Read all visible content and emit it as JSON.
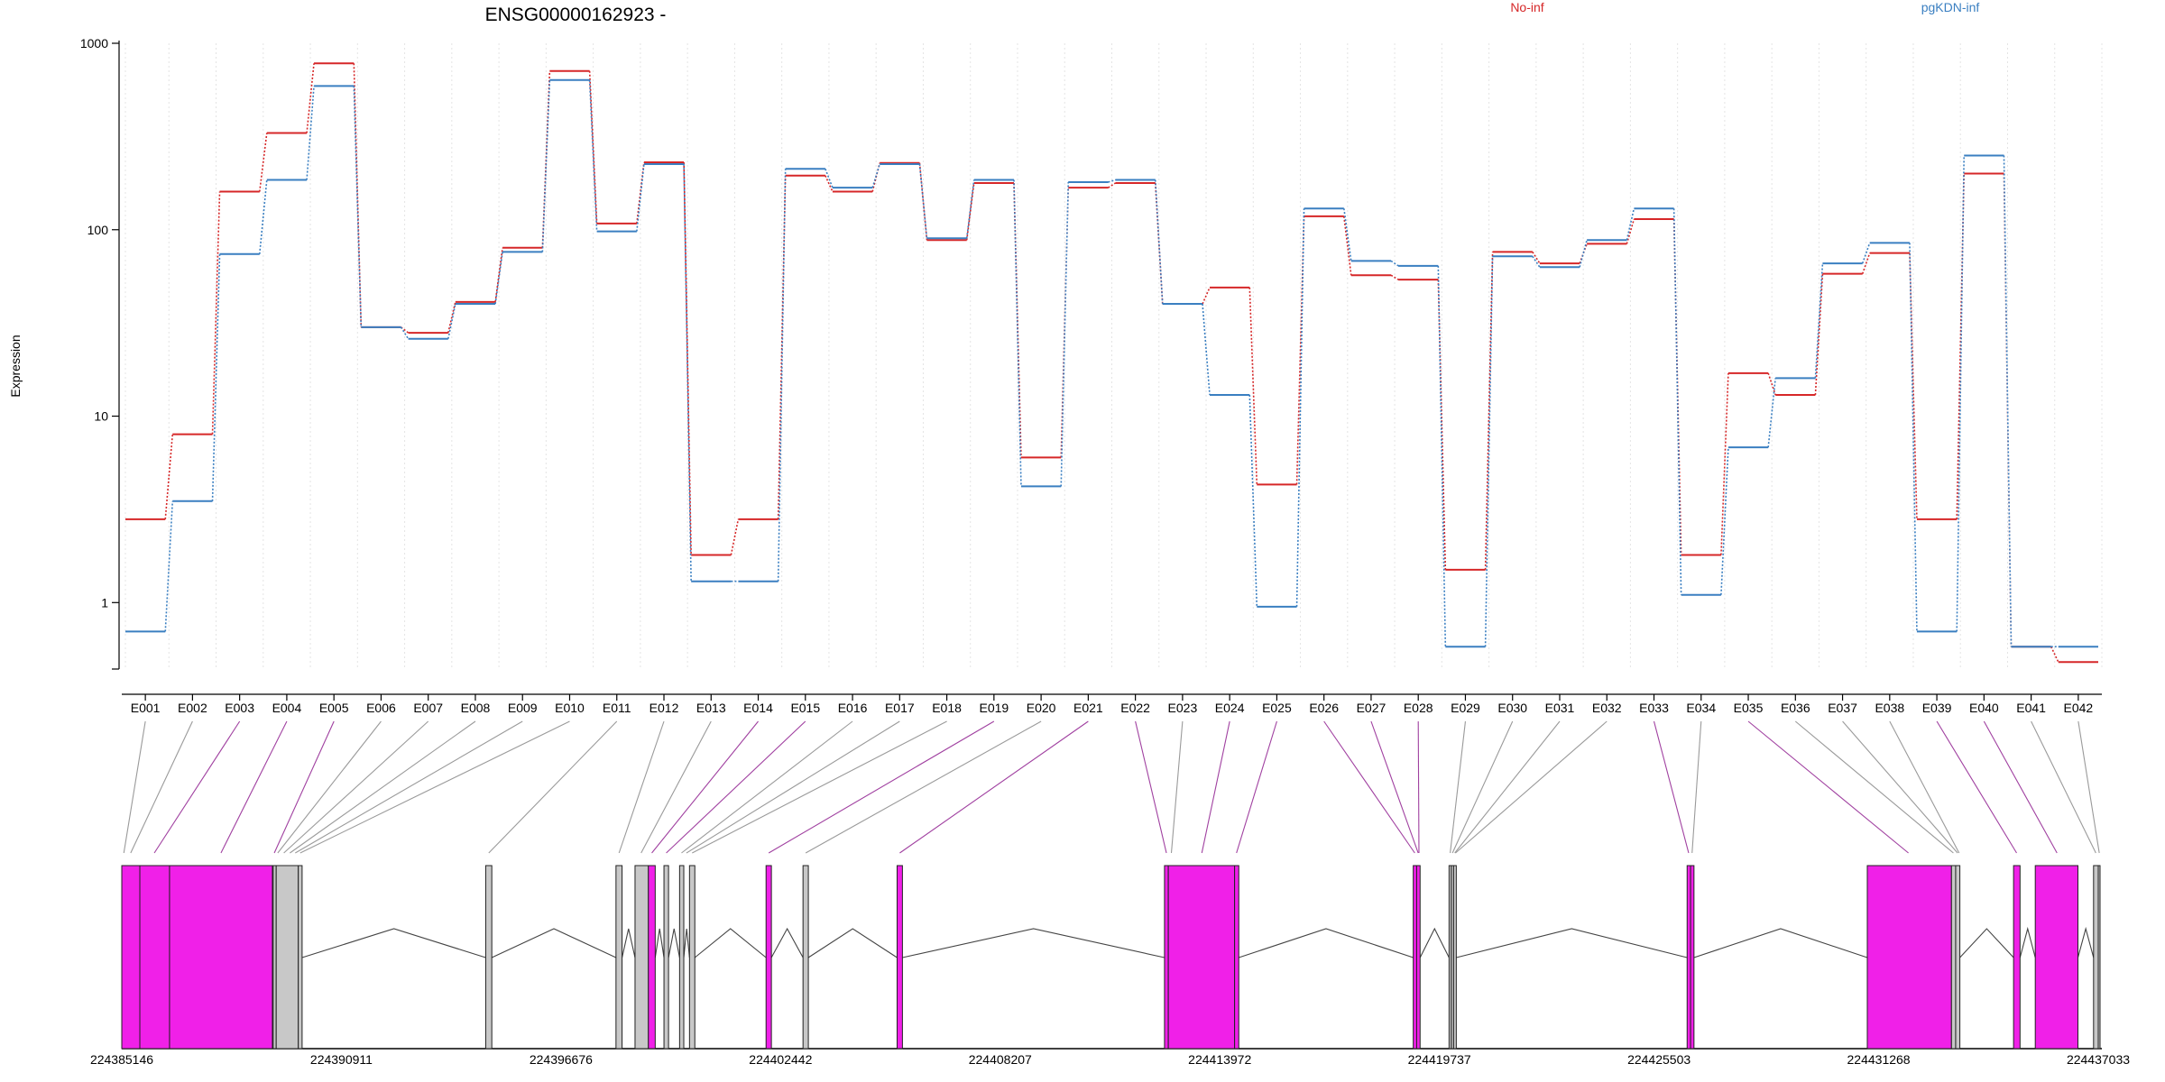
{
  "chart_data": {
    "type": "line",
    "title": "ENSG00000162923 -",
    "ylabel": "Expression",
    "yscale": "log",
    "ylim": [
      0.45,
      1000
    ],
    "yticks": [
      1,
      10,
      100,
      1000
    ],
    "ytick_labels": [
      "1",
      "10",
      "100",
      "1000"
    ],
    "categories": [
      "E001",
      "E002",
      "E003",
      "E004",
      "E005",
      "E006",
      "E007",
      "E008",
      "E009",
      "E010",
      "E011",
      "E012",
      "E013",
      "E014",
      "E015",
      "E016",
      "E017",
      "E018",
      "E019",
      "E020",
      "E021",
      "E022",
      "E023",
      "E024",
      "E025",
      "E026",
      "E027",
      "E028",
      "E029",
      "E030",
      "E031",
      "E032",
      "E033",
      "E034",
      "E035",
      "E036",
      "E037",
      "E038",
      "E039",
      "E040",
      "E041",
      "E042"
    ],
    "series": [
      {
        "name": "No-inf",
        "color": "#d62728",
        "values": [
          2.8,
          8.0,
          160,
          330,
          780,
          30,
          28,
          41,
          80,
          710,
          108,
          230,
          1.8,
          2.8,
          195,
          160,
          228,
          88,
          178,
          6.0,
          168,
          178,
          40,
          49,
          4.3,
          118,
          57,
          54,
          1.5,
          76,
          66,
          84,
          114,
          1.8,
          17,
          13,
          58,
          75,
          2.8,
          200,
          0.58,
          0.48
        ]
      },
      {
        "name": "pgKDN-inf",
        "color": "#3a7fc1",
        "values": [
          0.7,
          3.5,
          74,
          185,
          590,
          30,
          26,
          40,
          76,
          635,
          98,
          225,
          1.3,
          1.3,
          212,
          168,
          225,
          90,
          185,
          4.2,
          180,
          185,
          40,
          13,
          0.95,
          130,
          68,
          64,
          0.58,
          72,
          63,
          88,
          130,
          1.1,
          6.8,
          16,
          66,
          85,
          0.7,
          250,
          0.58,
          0.58
        ]
      }
    ],
    "gene_coords": {
      "start": 224385146,
      "end": 224437033,
      "tick_labels": [
        "224385146",
        "224390911",
        "224396676",
        "224402442",
        "224408207",
        "224413972",
        "224419737",
        "224425503",
        "224431268",
        "224437033"
      ]
    },
    "exons": [
      {
        "s": 224385146,
        "e": 224385620,
        "diff": true
      },
      {
        "s": 224385620,
        "e": 224386400,
        "diff": true
      },
      {
        "s": 224386400,
        "e": 224389100,
        "diff": true
      },
      {
        "s": 224389120,
        "e": 224389200,
        "diff": false
      },
      {
        "s": 224389200,
        "e": 224389780,
        "diff": false
      },
      {
        "s": 224389780,
        "e": 224389880,
        "diff": false
      },
      {
        "s": 224394700,
        "e": 224394860,
        "diff": false
      },
      {
        "s": 224398120,
        "e": 224398280,
        "diff": false
      },
      {
        "s": 224398620,
        "e": 224398970,
        "diff": false
      },
      {
        "s": 224398970,
        "e": 224399150,
        "diff": true
      },
      {
        "s": 224399380,
        "e": 224399500,
        "diff": false
      },
      {
        "s": 224399790,
        "e": 224399900,
        "diff": false
      },
      {
        "s": 224400050,
        "e": 224400190,
        "diff": false
      },
      {
        "s": 224402060,
        "e": 224402200,
        "diff": true
      },
      {
        "s": 224403030,
        "e": 224403170,
        "diff": false
      },
      {
        "s": 224405500,
        "e": 224405640,
        "diff": true
      },
      {
        "s": 224412520,
        "e": 224412620,
        "diff": true
      },
      {
        "s": 224412620,
        "e": 224414360,
        "diff": true
      },
      {
        "s": 224414360,
        "e": 224414470,
        "diff": true
      },
      {
        "s": 224419050,
        "e": 224419140,
        "diff": true
      },
      {
        "s": 224419140,
        "e": 224419230,
        "diff": true
      },
      {
        "s": 224419990,
        "e": 224420050,
        "diff": false
      },
      {
        "s": 224420050,
        "e": 224420110,
        "diff": false
      },
      {
        "s": 224420110,
        "e": 224420180,
        "diff": false
      },
      {
        "s": 224426240,
        "e": 224426330,
        "diff": true
      },
      {
        "s": 224426330,
        "e": 224426420,
        "diff": true
      },
      {
        "s": 224430970,
        "e": 224433180,
        "diff": true
      },
      {
        "s": 224433180,
        "e": 224433290,
        "diff": false
      },
      {
        "s": 224433290,
        "e": 224433400,
        "diff": false
      },
      {
        "s": 224434810,
        "e": 224434980,
        "diff": true
      },
      {
        "s": 224435380,
        "e": 224436500,
        "diff": true
      },
      {
        "s": 224436910,
        "e": 224437033,
        "diff": false
      },
      {
        "s": 224437033,
        "e": 224437080,
        "diff": false
      }
    ],
    "exon_map": [
      {
        "e": "E001",
        "c": 224385200,
        "diff": false
      },
      {
        "e": "E002",
        "c": 224385380,
        "diff": false
      },
      {
        "e": "E003",
        "c": 224386000,
        "diff": true
      },
      {
        "e": "E004",
        "c": 224387750,
        "diff": true
      },
      {
        "e": "E005",
        "c": 224389150,
        "diff": true
      },
      {
        "e": "E006",
        "c": 224389240,
        "diff": false
      },
      {
        "e": "E007",
        "c": 224389400,
        "diff": false
      },
      {
        "e": "E008",
        "c": 224389560,
        "diff": false
      },
      {
        "e": "E009",
        "c": 224389700,
        "diff": false
      },
      {
        "e": "E010",
        "c": 224389830,
        "diff": false
      },
      {
        "e": "E011",
        "c": 224394780,
        "diff": false
      },
      {
        "e": "E012",
        "c": 224398200,
        "diff": false
      },
      {
        "e": "E013",
        "c": 224398780,
        "diff": false
      },
      {
        "e": "E014",
        "c": 224399060,
        "diff": true
      },
      {
        "e": "E015",
        "c": 224399440,
        "diff": true
      },
      {
        "e": "E016",
        "c": 224399840,
        "diff": false
      },
      {
        "e": "E017",
        "c": 224399970,
        "diff": false
      },
      {
        "e": "E018",
        "c": 224400120,
        "diff": false
      },
      {
        "e": "E019",
        "c": 224402130,
        "diff": true
      },
      {
        "e": "E020",
        "c": 224403100,
        "diff": false
      },
      {
        "e": "E021",
        "c": 224405570,
        "diff": true
      },
      {
        "e": "E022",
        "c": 224412570,
        "diff": true
      },
      {
        "e": "E023",
        "c": 224412700,
        "diff": false
      },
      {
        "e": "E024",
        "c": 224413500,
        "diff": true
      },
      {
        "e": "E025",
        "c": 224414410,
        "diff": true
      },
      {
        "e": "E026",
        "c": 224419090,
        "diff": true
      },
      {
        "e": "E027",
        "c": 224419180,
        "diff": true
      },
      {
        "e": "E028",
        "c": 224419200,
        "diff": true
      },
      {
        "e": "E029",
        "c": 224420020,
        "diff": false
      },
      {
        "e": "E030",
        "c": 224420080,
        "diff": false
      },
      {
        "e": "E031",
        "c": 224420140,
        "diff": false
      },
      {
        "e": "E032",
        "c": 224420160,
        "diff": false
      },
      {
        "e": "E033",
        "c": 224426280,
        "diff": true
      },
      {
        "e": "E034",
        "c": 224426370,
        "diff": false
      },
      {
        "e": "E035",
        "c": 224432050,
        "diff": true
      },
      {
        "e": "E036",
        "c": 224433230,
        "diff": false
      },
      {
        "e": "E037",
        "c": 224433340,
        "diff": false
      },
      {
        "e": "E038",
        "c": 224433380,
        "diff": false
      },
      {
        "e": "E039",
        "c": 224434890,
        "diff": true
      },
      {
        "e": "E040",
        "c": 224435950,
        "diff": true
      },
      {
        "e": "E041",
        "c": 224436970,
        "diff": false
      },
      {
        "e": "E042",
        "c": 224437060,
        "diff": false
      }
    ]
  }
}
